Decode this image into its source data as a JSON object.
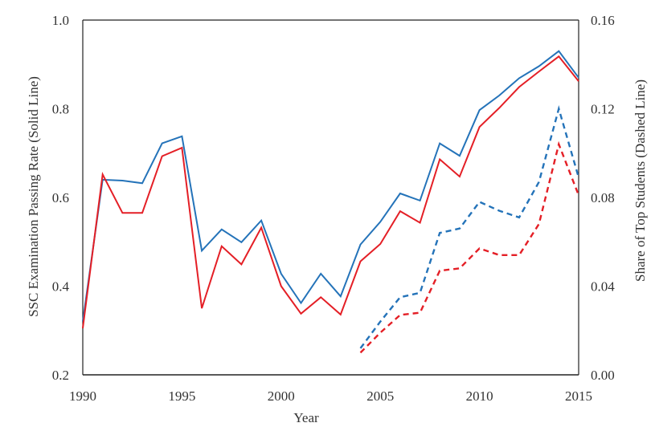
{
  "chart_data": {
    "type": "line",
    "xlabel": "Year",
    "ylabel_left": "SSC Examination Passing Rate (Solid Line)",
    "ylabel_right": "Share of Top Students (Dashed Line)",
    "xlim": [
      1990,
      2015
    ],
    "ylim_left": [
      0.2,
      1.0
    ],
    "ylim_right": [
      0.0,
      0.16
    ],
    "x_ticks": [
      "1990",
      "1995",
      "2000",
      "2005",
      "2010",
      "2015"
    ],
    "y_left_ticks": [
      "0.2",
      "0.4",
      "0.6",
      "0.8",
      "1.0"
    ],
    "y_right_ticks": [
      "0.00",
      "0.04",
      "0.08",
      "0.12",
      "0.16"
    ],
    "grid": false,
    "series": [
      {
        "axis": "left",
        "style": "solid",
        "color": "#2473b9",
        "x": [
          1990,
          1991,
          1992,
          1993,
          1994,
          1995,
          1996,
          1997,
          1998,
          1999,
          2000,
          2001,
          2002,
          2003,
          2004,
          2005,
          2006,
          2007,
          2008,
          2009,
          2010,
          2011,
          2012,
          2013,
          2014,
          2015
        ],
        "y": [
          0.32,
          0.64,
          0.638,
          0.632,
          0.722,
          0.738,
          0.48,
          0.528,
          0.499,
          0.548,
          0.428,
          0.362,
          0.428,
          0.377,
          0.494,
          0.545,
          0.609,
          0.593,
          0.722,
          0.694,
          0.797,
          0.83,
          0.869,
          0.896,
          0.93,
          0.87
        ]
      },
      {
        "axis": "left",
        "style": "solid",
        "color": "#e41f26",
        "x": [
          1990,
          1991,
          1992,
          1993,
          1994,
          1995,
          1996,
          1997,
          1998,
          1999,
          2000,
          2001,
          2002,
          2003,
          2004,
          2005,
          2006,
          2007,
          2008,
          2009,
          2010,
          2011,
          2012,
          2013,
          2014,
          2015
        ],
        "y": [
          0.305,
          0.652,
          0.565,
          0.565,
          0.693,
          0.712,
          0.35,
          0.49,
          0.449,
          0.532,
          0.4,
          0.338,
          0.375,
          0.336,
          0.456,
          0.495,
          0.569,
          0.543,
          0.686,
          0.647,
          0.759,
          0.802,
          0.849,
          0.884,
          0.918,
          0.862
        ]
      },
      {
        "axis": "right",
        "style": "dashed",
        "color": "#2473b9",
        "x": [
          2004,
          2005,
          2006,
          2007,
          2008,
          2009,
          2010,
          2011,
          2012,
          2013,
          2014,
          2015
        ],
        "y": [
          0.012,
          0.024,
          0.035,
          0.037,
          0.064,
          0.066,
          0.078,
          0.074,
          0.071,
          0.087,
          0.12,
          0.089
        ]
      },
      {
        "axis": "right",
        "style": "dashed",
        "color": "#e41f26",
        "x": [
          2004,
          2005,
          2006,
          2007,
          2008,
          2009,
          2010,
          2011,
          2012,
          2013,
          2014,
          2015
        ],
        "y": [
          0.01,
          0.019,
          0.027,
          0.028,
          0.047,
          0.048,
          0.057,
          0.054,
          0.054,
          0.068,
          0.104,
          0.081
        ]
      }
    ]
  }
}
